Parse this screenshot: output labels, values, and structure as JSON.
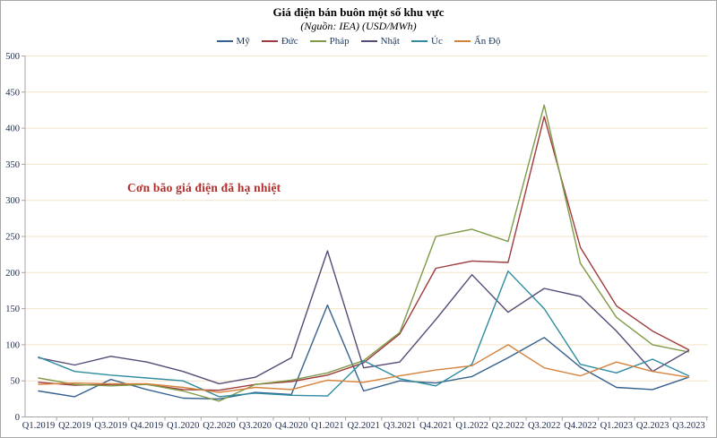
{
  "chart_data": {
    "type": "line",
    "title": "Giá điện bán buôn một số khu vực",
    "subtitle": "(Nguồn: IEA) (USD/MWh)",
    "annotation": {
      "text": "Cơn bão giá điện đã hạ nhiệt",
      "color": "#ae2f2b"
    },
    "xlabel": "",
    "ylabel": "",
    "ylim": [
      0,
      500
    ],
    "ytick_step": 50,
    "grid": true,
    "legend_position": "top-center",
    "gridline_color": "#f3e4c8",
    "axis_color": "#a6a6a6",
    "label_color": "#1b2a4a",
    "categories": [
      "Q1.2019",
      "Q2.2019",
      "Q3.2019",
      "Q4.2019",
      "Q1.2020",
      "Q2.2020",
      "Q3.2020",
      "Q4.2020",
      "Q1.2021",
      "Q2.2021",
      "Q3.2021",
      "Q4.2021",
      "Q1.2022",
      "Q2.2022",
      "Q3.2022",
      "Q4.2022",
      "Q1.2023",
      "Q2.2023",
      "Q3.2023"
    ],
    "series": [
      {
        "key": "my",
        "name": "Mỹ",
        "color": "#35618e",
        "values": [
          36,
          28,
          52,
          38,
          26,
          25,
          34,
          31,
          155,
          36,
          50,
          47,
          56,
          82,
          110,
          69,
          41,
          38,
          55
        ]
      },
      {
        "key": "duc",
        "name": "Đức",
        "color": "#9e3b3e",
        "values": [
          48,
          44,
          45,
          45,
          38,
          37,
          45,
          49,
          58,
          75,
          115,
          206,
          216,
          214,
          416,
          235,
          154,
          119,
          93
        ]
      },
      {
        "key": "phap",
        "name": "Pháp",
        "color": "#7f9a48",
        "values": [
          54,
          45,
          43,
          45,
          36,
          22,
          45,
          51,
          61,
          78,
          117,
          250,
          260,
          243,
          432,
          213,
          138,
          100,
          90
        ]
      },
      {
        "key": "nhat",
        "name": "Nhật",
        "color": "#564a76",
        "values": [
          82,
          72,
          84,
          76,
          63,
          46,
          55,
          82,
          230,
          68,
          76,
          135,
          197,
          145,
          178,
          167,
          119,
          63,
          92
        ]
      },
      {
        "key": "uc",
        "name": "Úc",
        "color": "#2e8ba0",
        "values": [
          83,
          63,
          58,
          54,
          50,
          28,
          33,
          30,
          29,
          78,
          53,
          43,
          73,
          202,
          150,
          73,
          61,
          80,
          57
        ]
      },
      {
        "key": "an-do",
        "name": "Ấn Độ",
        "color": "#d5823c",
        "values": [
          45,
          47,
          46,
          46,
          41,
          34,
          41,
          38,
          51,
          48,
          57,
          65,
          71,
          100,
          68,
          57,
          76,
          63,
          55
        ]
      }
    ]
  }
}
